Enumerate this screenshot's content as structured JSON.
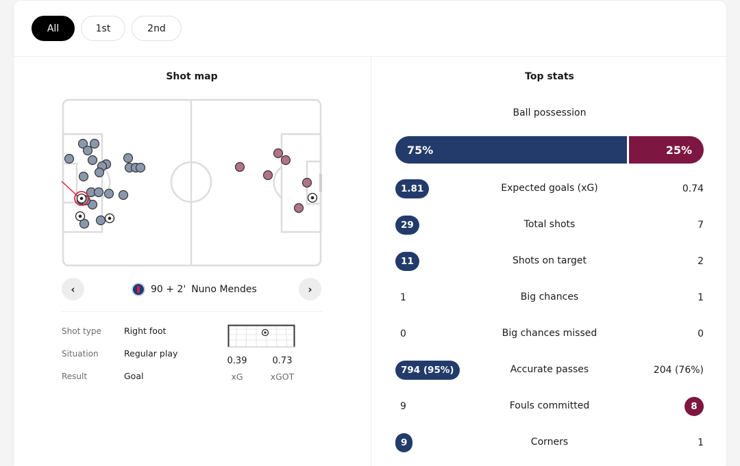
{
  "tabs": [
    {
      "label": "All",
      "active": true
    },
    {
      "label": "1st",
      "active": false
    },
    {
      "label": "2nd",
      "active": false
    }
  ],
  "shot_map": {
    "title": "Shot map",
    "selected_shot": {
      "minute": "90 + 2'",
      "player": "Nuno Mendes",
      "team_icon": "psg-crest-icon",
      "details": [
        {
          "label": "Shot type",
          "value": "Right foot"
        },
        {
          "label": "Situation",
          "value": "Regular play"
        },
        {
          "label": "Result",
          "value": "Goal"
        }
      ],
      "xg": "0.39",
      "xg_label": "xG",
      "xgot": "0.73",
      "xgot_label": "xGOT"
    },
    "prev_icon": "chevron-left-icon",
    "next_icon": "chevron-right-icon"
  },
  "top_stats": {
    "title": "Top stats",
    "possession": {
      "label": "Ball possession",
      "home": "75%",
      "away": "25%",
      "home_fraction": 0.75
    },
    "rows": [
      {
        "label": "Expected goals (xG)",
        "home": "1.81",
        "away": "0.74",
        "highlight": "home"
      },
      {
        "label": "Total shots",
        "home": "29",
        "away": "7",
        "highlight": "home"
      },
      {
        "label": "Shots on target",
        "home": "11",
        "away": "2",
        "highlight": "home"
      },
      {
        "label": "Big chances",
        "home": "1",
        "away": "1",
        "highlight": "none"
      },
      {
        "label": "Big chances missed",
        "home": "0",
        "away": "0",
        "highlight": "none"
      },
      {
        "label": "Accurate passes",
        "home": "794 (95%)",
        "away": "204 (76%)",
        "highlight": "home"
      },
      {
        "label": "Fouls committed",
        "home": "9",
        "away": "8",
        "highlight": "away"
      },
      {
        "label": "Corners",
        "home": "9",
        "away": "1",
        "highlight": "home"
      }
    ]
  },
  "colors": {
    "home": "#233b6b",
    "away": "#7d1640",
    "home_shot": "#8a98ad",
    "away_shot": "#b07389",
    "selected_shot_ring": "#d8233a",
    "active_tab": "#000000"
  }
}
